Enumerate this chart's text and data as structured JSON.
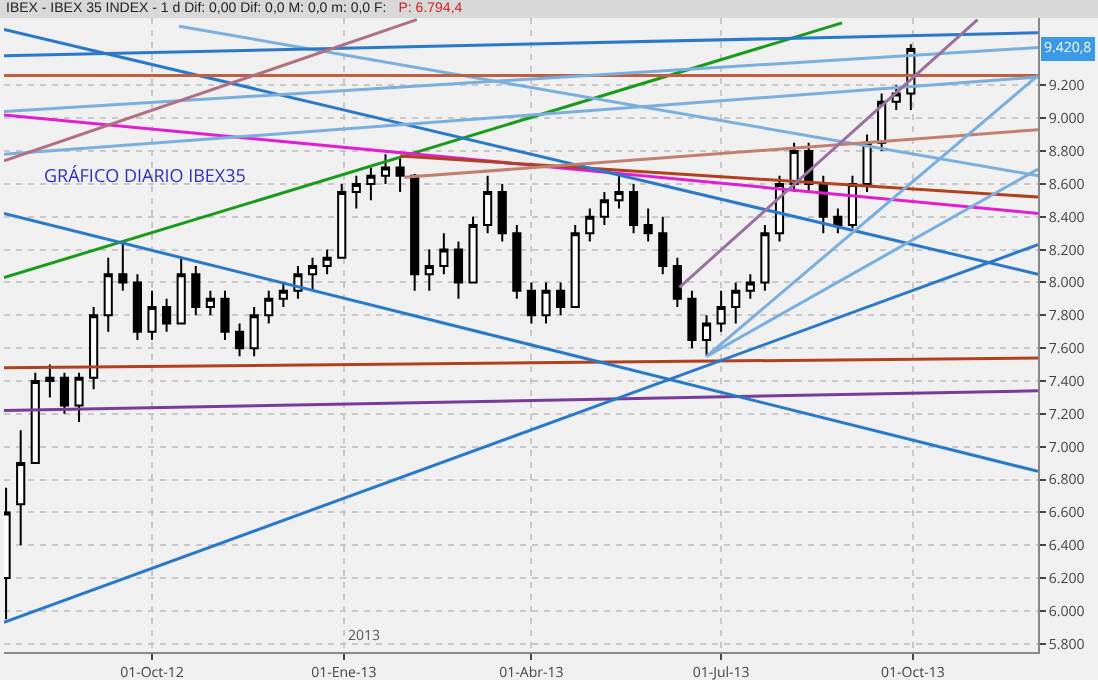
{
  "chart_data": {
    "type": "candlestick",
    "title": "IBEX - IBEX 35 INDEX - 1 d Dif: 0,00 Dif: 0,0 M: 0,0 m: 0,0 F:",
    "subtitle": "P: 6.794,4",
    "color": "#000000",
    "x": [
      "2012-07-23",
      "2012-07-30",
      "2012-08-06",
      "2012-08-13",
      "2012-08-20",
      "2012-08-27",
      "2012-09-03",
      "2012-09-10",
      "2012-09-17",
      "2012-09-24",
      "2012-10-01",
      "2012-10-08",
      "2012-10-15",
      "2012-10-22",
      "2012-10-29",
      "2012-11-05",
      "2012-11-12",
      "2012-11-19",
      "2012-11-26",
      "2012-12-03",
      "2012-12-10",
      "2012-12-17",
      "2012-12-24",
      "2012-12-31",
      "2013-01-07",
      "2013-01-14",
      "2013-01-21",
      "2013-01-28",
      "2013-02-04",
      "2013-02-11",
      "2013-02-18",
      "2013-02-25",
      "2013-03-04",
      "2013-03-11",
      "2013-03-18",
      "2013-03-25",
      "2013-04-01",
      "2013-04-08",
      "2013-04-15",
      "2013-04-22",
      "2013-04-29",
      "2013-05-06",
      "2013-05-13",
      "2013-05-20",
      "2013-05-27",
      "2013-06-03",
      "2013-06-10",
      "2013-06-17",
      "2013-06-24",
      "2013-07-01",
      "2013-07-08",
      "2013-07-15",
      "2013-07-22",
      "2013-07-29",
      "2013-08-05",
      "2013-08-12",
      "2013-08-19",
      "2013-08-26",
      "2013-09-02",
      "2013-09-09",
      "2013-09-16",
      "2013-09-23",
      "2013-09-30"
    ],
    "ohlc": [
      [
        6200,
        6750,
        5950,
        6600
      ],
      [
        6650,
        7100,
        6400,
        6900
      ],
      [
        6900,
        7450,
        6900,
        7400
      ],
      [
        7400,
        7500,
        7300,
        7420
      ],
      [
        7420,
        7450,
        7200,
        7250
      ],
      [
        7250,
        7450,
        7150,
        7420
      ],
      [
        7420,
        7850,
        7350,
        7800
      ],
      [
        7800,
        8150,
        7700,
        8050
      ],
      [
        8050,
        8250,
        7950,
        8000
      ],
      [
        8000,
        8050,
        7650,
        7700
      ],
      [
        7700,
        7950,
        7650,
        7850
      ],
      [
        7850,
        7900,
        7700,
        7750
      ],
      [
        7750,
        8150,
        7750,
        8050
      ],
      [
        8050,
        8100,
        7800,
        7850
      ],
      [
        7850,
        7950,
        7800,
        7900
      ],
      [
        7900,
        7950,
        7650,
        7700
      ],
      [
        7700,
        7750,
        7550,
        7600
      ],
      [
        7600,
        7850,
        7550,
        7800
      ],
      [
        7800,
        7950,
        7750,
        7900
      ],
      [
        7900,
        8000,
        7850,
        7950
      ],
      [
        7950,
        8100,
        7900,
        8050
      ],
      [
        8050,
        8150,
        7950,
        8100
      ],
      [
        8100,
        8200,
        8050,
        8150
      ],
      [
        8150,
        8600,
        8150,
        8550
      ],
      [
        8550,
        8650,
        8450,
        8600
      ],
      [
        8600,
        8700,
        8500,
        8650
      ],
      [
        8650,
        8780,
        8600,
        8700
      ],
      [
        8700,
        8760,
        8550,
        8650
      ],
      [
        8650,
        8660,
        7950,
        8050
      ],
      [
        8050,
        8200,
        7950,
        8100
      ],
      [
        8100,
        8300,
        8050,
        8200
      ],
      [
        8200,
        8250,
        7900,
        8000
      ],
      [
        8000,
        8400,
        8000,
        8350
      ],
      [
        8350,
        8650,
        8300,
        8550
      ],
      [
        8550,
        8600,
        8250,
        8300
      ],
      [
        8300,
        8350,
        7900,
        7950
      ],
      [
        7950,
        8000,
        7750,
        7800
      ],
      [
        7800,
        8000,
        7750,
        7950
      ],
      [
        7950,
        8000,
        7800,
        7850
      ],
      [
        7850,
        8350,
        7850,
        8300
      ],
      [
        8300,
        8450,
        8250,
        8400
      ],
      [
        8400,
        8550,
        8350,
        8500
      ],
      [
        8500,
        8650,
        8450,
        8550
      ],
      [
        8550,
        8600,
        8300,
        8350
      ],
      [
        8350,
        8450,
        8250,
        8300
      ],
      [
        8300,
        8400,
        8050,
        8100
      ],
      [
        8100,
        8150,
        7850,
        7900
      ],
      [
        7900,
        7950,
        7600,
        7650
      ],
      [
        7650,
        7800,
        7550,
        7750
      ],
      [
        7750,
        7950,
        7700,
        7850
      ],
      [
        7850,
        8000,
        7750,
        7950
      ],
      [
        7950,
        8050,
        7900,
        8000
      ],
      [
        8000,
        8350,
        7950,
        8300
      ],
      [
        8300,
        8650,
        8250,
        8600
      ],
      [
        8600,
        8850,
        8550,
        8800
      ],
      [
        8800,
        8850,
        8550,
        8600
      ],
      [
        8600,
        8650,
        8300,
        8400
      ],
      [
        8400,
        8450,
        8300,
        8350
      ],
      [
        8350,
        8650,
        8330,
        8600
      ],
      [
        8600,
        8900,
        8550,
        8850
      ],
      [
        8850,
        9150,
        8800,
        9100
      ],
      [
        9100,
        9200,
        9050,
        9150
      ],
      [
        9150,
        9450,
        9050,
        9420.8
      ]
    ],
    "series": [
      {
        "type": "line",
        "color": "#1a9a1a",
        "x": [
          "2012-07-22",
          "2013-08-28"
        ],
        "values": [
          8030,
          9580
        ]
      },
      {
        "type": "line",
        "color": "#e020d0",
        "x": [
          "2012-07-22",
          "2013-11-30"
        ],
        "values": [
          9020,
          8420
        ]
      },
      {
        "type": "line",
        "color": "#b04020",
        "x": [
          "2013-01-28",
          "2013-11-30"
        ],
        "values": [
          8770,
          8520
        ]
      },
      {
        "type": "line",
        "color": "#b04020",
        "x": [
          "2012-07-22",
          "2013-11-30"
        ],
        "values": [
          7480,
          7540
        ]
      },
      {
        "type": "line",
        "color": "#7a3a9a",
        "x": [
          "2012-07-22",
          "2013-11-30"
        ],
        "values": [
          7220,
          7340
        ]
      },
      {
        "type": "line",
        "color": "#2a78c8",
        "x": [
          "2012-07-22",
          "2013-11-30"
        ],
        "values": [
          5930,
          8230
        ]
      },
      {
        "type": "line",
        "color": "#2a78c8",
        "x": [
          "2012-07-22",
          "2013-11-30"
        ],
        "values": [
          8420,
          6850
        ]
      },
      {
        "type": "line",
        "color": "#2a78c8",
        "x": [
          "2012-07-22",
          "2013-11-30"
        ],
        "values": [
          9540,
          8050
        ]
      },
      {
        "type": "line",
        "color": "#7aaedc",
        "x": [
          "2012-10-14",
          "2013-11-30"
        ],
        "values": [
          9560,
          8650
        ]
      },
      {
        "type": "line",
        "color": "#2a78c8",
        "x": [
          "2012-07-22",
          "2013-11-30"
        ],
        "values": [
          9380,
          9520
        ]
      },
      {
        "type": "line",
        "color": "#c06040",
        "x": [
          "2012-07-22",
          "2013-11-30"
        ],
        "values": [
          9260,
          9260
        ]
      },
      {
        "type": "line",
        "color": "#7aaedc",
        "x": [
          "2012-07-22",
          "2013-11-30"
        ],
        "values": [
          9040,
          9430
        ]
      },
      {
        "type": "line",
        "color": "#7aaedc",
        "x": [
          "2012-07-22",
          "2013-11-30"
        ],
        "values": [
          8780,
          9250
        ]
      },
      {
        "type": "line",
        "color": "#b07080",
        "x": [
          "2012-07-22",
          "2013-02-05"
        ],
        "values": [
          8740,
          9600
        ]
      },
      {
        "type": "line",
        "color": "#c08070",
        "x": [
          "2013-01-30",
          "2013-11-30"
        ],
        "values": [
          8640,
          8930
        ]
      },
      {
        "type": "line",
        "color": "#9a70a0",
        "x": [
          "2013-06-11",
          "2013-11-01"
        ],
        "values": [
          7970,
          9600
        ]
      },
      {
        "type": "line",
        "color": "#7aaedc",
        "x": [
          "2013-06-24",
          "2013-11-30"
        ],
        "values": [
          7550,
          9260
        ]
      },
      {
        "type": "line",
        "color": "#7aaedc",
        "x": [
          "2013-06-24",
          "2013-11-30"
        ],
        "values": [
          7550,
          8690
        ]
      }
    ],
    "xlim": [
      "2012-07-22",
      "2013-11-30"
    ],
    "xticks": [
      {
        "value": "2012-10-01",
        "label": "01-Oct-12"
      },
      {
        "value": "2013-01-01",
        "label": "01-Ene-13"
      },
      {
        "value": "2013-04-01",
        "label": "01-Abr-13"
      },
      {
        "value": "2013-07-01",
        "label": "01-Jul-13"
      },
      {
        "value": "2013-10-01",
        "label": "01-Oct-13"
      }
    ],
    "ylim": [
      5750,
      9610
    ],
    "yticks": [
      {
        "value": 5800,
        "label": "5.800"
      },
      {
        "value": 6000,
        "label": "6.000"
      },
      {
        "value": 6200,
        "label": "6.200"
      },
      {
        "value": 6400,
        "label": "6.400"
      },
      {
        "value": 6600,
        "label": "6.600"
      },
      {
        "value": 6800,
        "label": "6.800"
      },
      {
        "value": 7000,
        "label": "7.000"
      },
      {
        "value": 7200,
        "label": "7.200"
      },
      {
        "value": 7400,
        "label": "7.400"
      },
      {
        "value": 7600,
        "label": "7.600"
      },
      {
        "value": 7800,
        "label": "7.800"
      },
      {
        "value": 8000,
        "label": "8.000"
      },
      {
        "value": 8200,
        "label": "8.200"
      },
      {
        "value": 8400,
        "label": "8.400"
      },
      {
        "value": 8600,
        "label": "8.600"
      },
      {
        "value": 8800,
        "label": "8.800"
      },
      {
        "value": 9000,
        "label": "9.000"
      },
      {
        "value": 9200,
        "label": "9.200"
      }
    ],
    "grid": true,
    "annotations": [
      "GRÁFICO DIARIO IBEX35",
      "2013",
      "9.420,8"
    ]
  }
}
